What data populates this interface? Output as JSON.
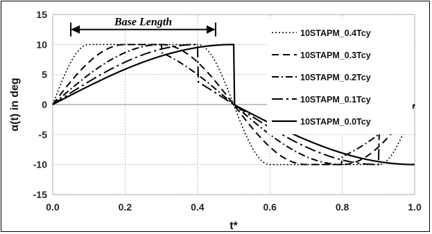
{
  "chart_data": {
    "type": "line",
    "xlabel": "t*",
    "ylabel": "α(t) in deg",
    "xlim": [
      0,
      1
    ],
    "ylim": [
      -15,
      15
    ],
    "x_ticks": [
      "0.0",
      "0.2",
      "0.4",
      "0.6",
      "0.8",
      "1.0"
    ],
    "y_ticks": [
      "15",
      "10",
      "5",
      "0",
      "-5",
      "-10",
      "-15"
    ],
    "grid": true,
    "legend_position": "right",
    "annotation": {
      "label": "Base Length",
      "x_start": 0.05,
      "x_end": 0.45,
      "y": 12.5
    },
    "series": [
      {
        "name": "10STAPM_0.4Tcy",
        "amplitude": 10,
        "ramp_fraction": 0.1,
        "dash": "2,3",
        "width": 1.6
      },
      {
        "name": "10STAPM_0.3Tcy",
        "amplitude": 10,
        "ramp_fraction": 0.2,
        "dash": "10,6",
        "width": 2
      },
      {
        "name": "10STAPM_0.2Tcy",
        "amplitude": 10,
        "ramp_fraction": 0.3,
        "dash": "10,4,2,4",
        "width": 2
      },
      {
        "name": "10STAPM_0.1Tcy",
        "amplitude": 10,
        "ramp_fraction": 0.4,
        "dash": "16,5,3,5",
        "width": 2
      },
      {
        "name": "10STAPM_0.0Tcy",
        "amplitude": 10,
        "ramp_fraction": 0.5,
        "dash": "",
        "width": 2.2
      }
    ]
  }
}
